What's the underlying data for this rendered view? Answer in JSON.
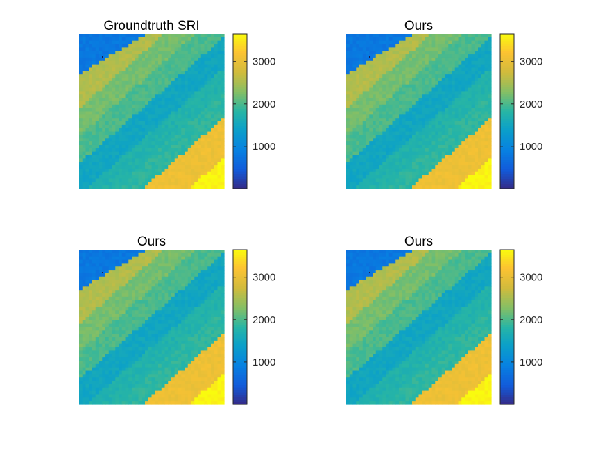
{
  "figure": {
    "panels": [
      {
        "title": "Groundtruth SRI"
      },
      {
        "title": "Ours"
      },
      {
        "title": "Ours"
      },
      {
        "title": "Ours"
      }
    ]
  },
  "chart_data": [
    {
      "type": "heatmap",
      "title": "Groundtruth SRI",
      "colormap": "parula",
      "clim": [
        0,
        3650
      ],
      "colorbar_ticks": [
        1000,
        2000,
        3000
      ],
      "colorbar_tick_labels": [
        "1000",
        "2000",
        "3000"
      ],
      "grid": false,
      "legend": "colorbar-right",
      "description_values": {
        "low_region_value": 800,
        "band_values": [
          3200,
          2550,
          2200,
          2000,
          1500,
          1750,
          1850,
          3050
        ],
        "max_value": 3600
      }
    },
    {
      "type": "heatmap",
      "title": "Ours",
      "colormap": "parula",
      "clim": [
        0,
        3650
      ],
      "colorbar_ticks": [
        1000,
        2000,
        3000
      ],
      "colorbar_tick_labels": [
        "1000",
        "2000",
        "3000"
      ],
      "grid": false,
      "legend": "colorbar-right",
      "description_values": {
        "low_region_value": 800,
        "band_values": [
          3200,
          2550,
          2200,
          2000,
          1500,
          1750,
          1850,
          3050
        ],
        "max_value": 3600
      }
    },
    {
      "type": "heatmap",
      "title": "Ours",
      "colormap": "parula",
      "clim": [
        0,
        3650
      ],
      "colorbar_ticks": [
        1000,
        2000,
        3000
      ],
      "colorbar_tick_labels": [
        "1000",
        "2000",
        "3000"
      ],
      "grid": false,
      "legend": "colorbar-right",
      "description_values": {
        "low_region_value": 800,
        "band_values": [
          3200,
          2550,
          2200,
          2000,
          1500,
          1750,
          1850,
          3050
        ],
        "max_value": 3600
      }
    },
    {
      "type": "heatmap",
      "title": "Ours",
      "colormap": "parula",
      "clim": [
        0,
        3650
      ],
      "colorbar_ticks": [
        1000,
        2000,
        3000
      ],
      "colorbar_tick_labels": [
        "1000",
        "2000",
        "3000"
      ],
      "grid": false,
      "legend": "colorbar-right",
      "description_values": {
        "low_region_value": 800,
        "band_values": [
          3200,
          2550,
          2200,
          2000,
          1500,
          1750,
          1850,
          3050
        ],
        "max_value": 3600
      }
    }
  ]
}
